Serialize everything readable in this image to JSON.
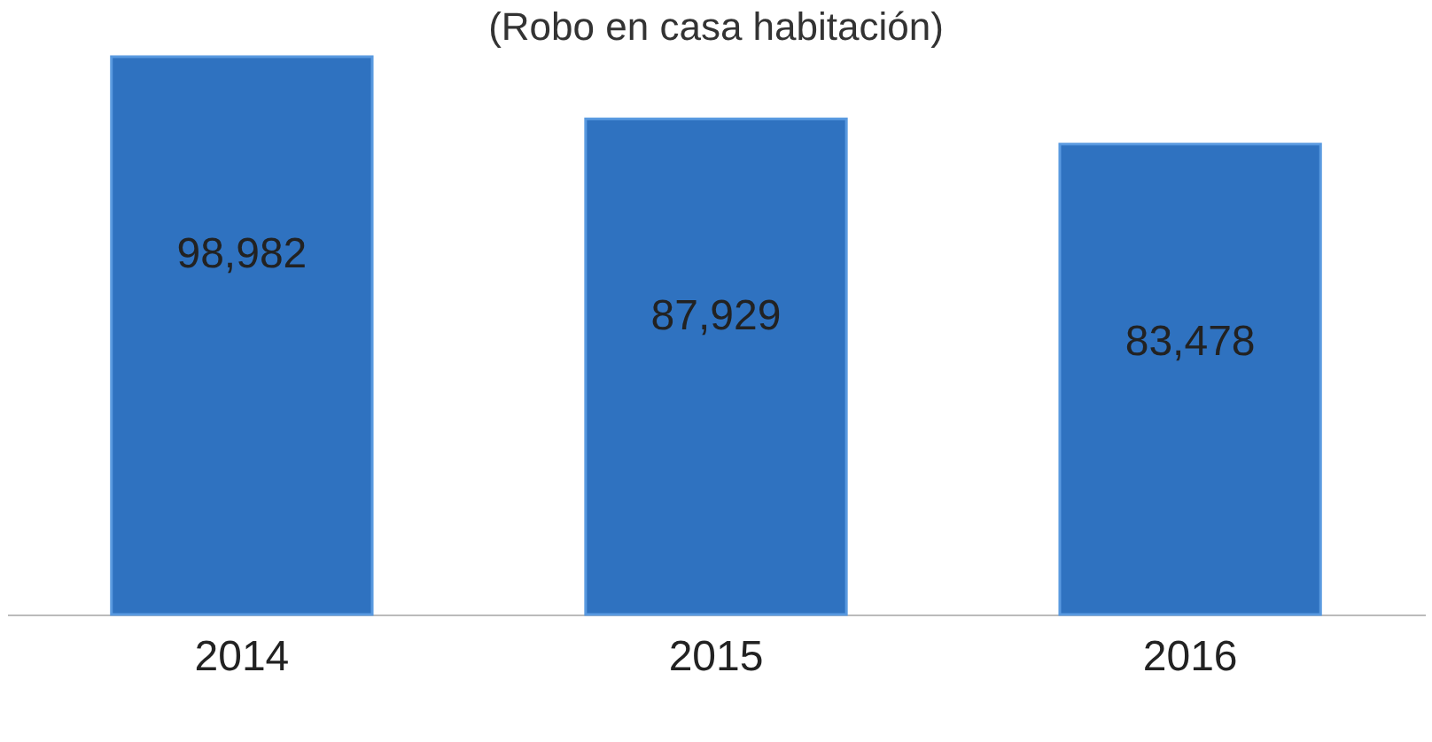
{
  "chart_data": {
    "type": "bar",
    "subtitle": "(Robo en casa habitación)",
    "categories": [
      "2014",
      "2015",
      "2016"
    ],
    "values": [
      98982,
      87929,
      83478
    ],
    "value_labels": [
      "98,982",
      "87,929",
      "83,478"
    ],
    "color": "#2f72c0"
  }
}
